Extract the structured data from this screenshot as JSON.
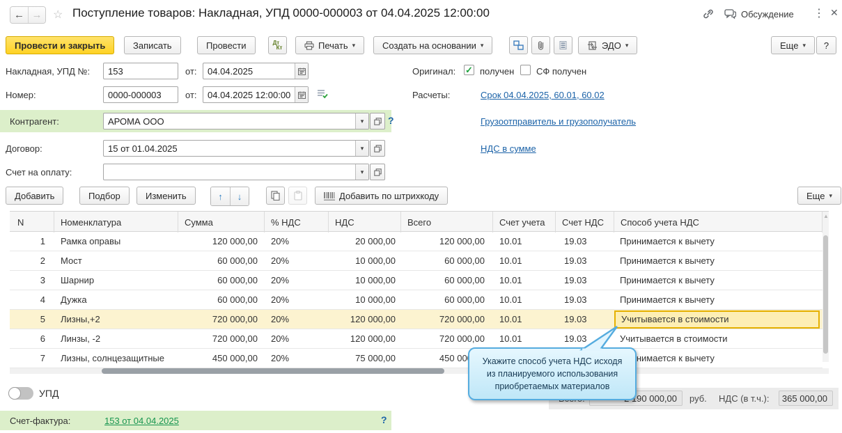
{
  "icons": {
    "back": "←",
    "forward": "→",
    "star": "☆",
    "dots": "⋮",
    "close": "✕",
    "caret": "▾",
    "up_arrow": "↑",
    "down_arrow": "↓",
    "check": "✓",
    "scroll_up": "▲",
    "dt": "Дт",
    "kt": "Кт"
  },
  "header": {
    "title": "Поступление товаров: Накладная, УПД 0000-000003 от 04.04.2025 12:00:00",
    "discussion_label": "Обсуждение"
  },
  "toolbar": {
    "post_and_close": "Провести и закрыть",
    "save": "Записать",
    "post": "Провести",
    "print": "Печать",
    "create_based_on": "Создать на основании",
    "edo": "ЭДО",
    "more": "Еще",
    "help": "?"
  },
  "form": {
    "invoice_no_label": "Накладная, УПД №:",
    "invoice_no": "153",
    "from_label_1": "от:",
    "invoice_date": "04.04.2025",
    "number_label": "Номер:",
    "number": "0000-000003",
    "from_label_2": "от:",
    "number_date": "04.04.2025 12:00:00",
    "original_label": "Оригинал:",
    "received_label": "получен",
    "sf_received_label": "СФ получен",
    "settlements_label": "Расчеты:",
    "settlements_link": "Срок 04.04.2025, 60.01, 60.02",
    "counterparty_label": "Контрагент:",
    "counterparty": "АРОМА ООО",
    "counterparty_help": "?",
    "consignor_link": "Грузоотправитель и грузополучатель",
    "contract_label": "Договор:",
    "contract": "15 от 01.04.2025",
    "vat_link": "НДС в сумме",
    "payment_invoice_label": "Счет на оплату:",
    "payment_invoice": ""
  },
  "table_toolbar": {
    "add": "Добавить",
    "pick": "Подбор",
    "edit": "Изменить",
    "add_by_barcode": "Добавить по штрихкоду",
    "more": "Еще"
  },
  "table": {
    "columns": [
      "N",
      "Номенклатура",
      "Сумма",
      "% НДС",
      "НДС",
      "Всего",
      "Счет учета",
      "Счет НДС",
      "Способ учета НДС"
    ],
    "rows": [
      {
        "n": "1",
        "name": "Рамка оправы",
        "sum": "120 000,00",
        "vat_rate": "20%",
        "vat": "20 000,00",
        "total": "120 000,00",
        "account": "10.01",
        "vat_account": "19.03",
        "vat_method": "Принимается к вычету",
        "selected": false
      },
      {
        "n": "2",
        "name": "Мост",
        "sum": "60 000,00",
        "vat_rate": "20%",
        "vat": "10 000,00",
        "total": "60 000,00",
        "account": "10.01",
        "vat_account": "19.03",
        "vat_method": "Принимается к вычету",
        "selected": false
      },
      {
        "n": "3",
        "name": "Шарнир",
        "sum": "60 000,00",
        "vat_rate": "20%",
        "vat": "10 000,00",
        "total": "60 000,00",
        "account": "10.01",
        "vat_account": "19.03",
        "vat_method": "Принимается к вычету",
        "selected": false
      },
      {
        "n": "4",
        "name": "Дужка",
        "sum": "60 000,00",
        "vat_rate": "20%",
        "vat": "10 000,00",
        "total": "60 000,00",
        "account": "10.01",
        "vat_account": "19.03",
        "vat_method": "Принимается к вычету",
        "selected": false
      },
      {
        "n": "5",
        "name": "Лизны,+2",
        "sum": "720 000,00",
        "vat_rate": "20%",
        "vat": "120 000,00",
        "total": "720 000,00",
        "account": "10.01",
        "vat_account": "19.03",
        "vat_method": "Учитывается в стоимости",
        "selected": true
      },
      {
        "n": "6",
        "name": "Линзы, -2",
        "sum": "720 000,00",
        "vat_rate": "20%",
        "vat": "120 000,00",
        "total": "720 000,00",
        "account": "10.01",
        "vat_account": "19.03",
        "vat_method": "Учитывается в стоимости",
        "selected": false
      },
      {
        "n": "7",
        "name": "Лизны, солнцезащитные",
        "sum": "450 000,00",
        "vat_rate": "20%",
        "vat": "75 000,00",
        "total": "450 000,00",
        "account": "10.01",
        "vat_account": "19.03",
        "vat_method": "Принимается к вычету",
        "selected": false
      }
    ]
  },
  "tooltip": {
    "lines": [
      "Укажите способ учета НДС исходя",
      "из планируемого использования",
      "приобретаемых материалов"
    ]
  },
  "footer": {
    "upd_label": "УПД",
    "total_label": "Всего:",
    "total_value": "2 190 000,00",
    "currency": "руб.",
    "vat_label": "НДС (в т.ч.):",
    "vat_value": "365 000,00",
    "invoice_label": "Счет-фактура:",
    "invoice_link": "153 от 04.04.2025",
    "help": "?"
  },
  "colors": {
    "accent_yellow": "#ffd224",
    "green_band": "#dcefca",
    "link_blue": "#1c63a8",
    "link_green": "#17954f",
    "selected_row": "#fcf3d0",
    "selection_border": "#e5b000",
    "tooltip_border": "#55acdf",
    "tooltip_bg": "#cdeefb"
  }
}
